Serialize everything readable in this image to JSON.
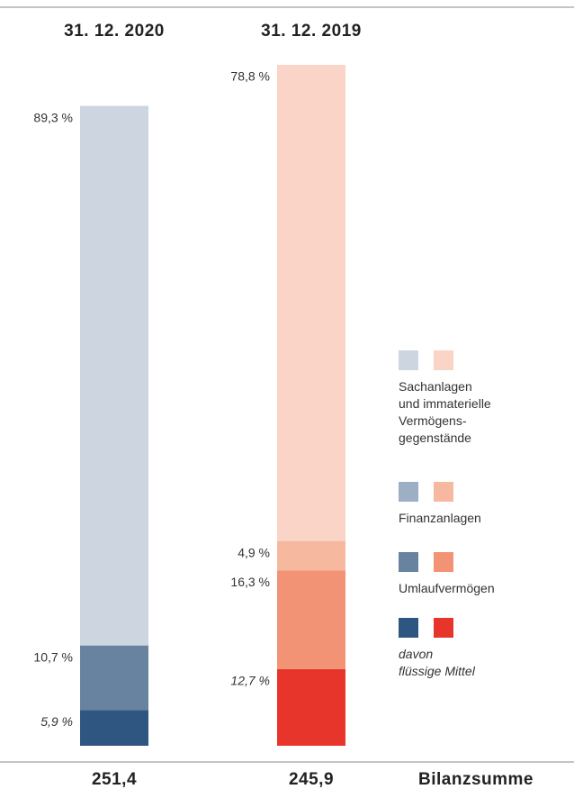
{
  "chart_data": {
    "type": "bar",
    "stacked": true,
    "categories": [
      "31. 12. 2020",
      "31. 12. 2019"
    ],
    "ylim": [
      0,
      112.7
    ],
    "series": [
      {
        "name": "Sachanlagen\nund immaterielle\nVermögens-\ngegenstände",
        "colors": [
          "#cdd5e0",
          "#fad4c6"
        ],
        "values": [
          89.3,
          78.8
        ],
        "value_labels": [
          "89,3 %",
          "78,8 %"
        ]
      },
      {
        "name": "Finanzanlagen",
        "colors": [
          "#9cafc4",
          "#f6b9a0"
        ],
        "values": [
          null,
          4.9
        ],
        "value_labels": [
          null,
          "4,9 %"
        ]
      },
      {
        "name": "Umlaufvermögen",
        "colors": [
          "#6883a0",
          "#f29375"
        ],
        "values": [
          10.7,
          16.3
        ],
        "value_labels": [
          "10,7 %",
          "16,3 %"
        ]
      },
      {
        "name": "davon\nflüssige Mittel",
        "colors": [
          "#2f5680",
          "#e8352b"
        ],
        "values": [
          5.9,
          12.7
        ],
        "value_labels": [
          "5,9 %",
          "12,7 %"
        ]
      }
    ],
    "totals": {
      "label": "Bilanzsumme",
      "values": [
        251.4,
        245.9
      ],
      "value_labels": [
        "251,4",
        "245,9"
      ]
    }
  }
}
